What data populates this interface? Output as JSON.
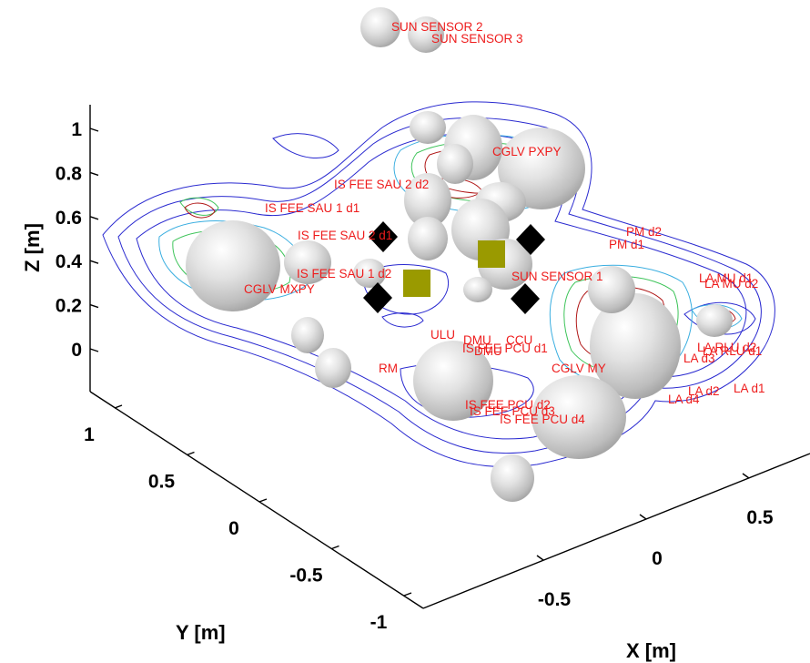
{
  "chart_data": {
    "type": "scatter",
    "title": "",
    "xlabel": "X [m]",
    "ylabel": "Y [m]",
    "zlabel": "Z [m]",
    "xlim": [
      -0.8,
      0.8
    ],
    "ylim": [
      -1,
      1
    ],
    "zlim": [
      -0.1,
      1.1
    ],
    "x_ticks": [
      "-0.5",
      "0",
      "0.5"
    ],
    "y_ticks": [
      "-1",
      "-0.5",
      "0",
      "0.5",
      "1"
    ],
    "z_ticks": [
      "0",
      "0.2",
      "0.4",
      "0.6",
      "0.8",
      "1"
    ],
    "grid": false,
    "colors": {
      "labels": "#ee1c1c",
      "contour_outer": "#2a2ad0",
      "contour_mid": "#3aaee0",
      "contour_green": "#3ec45a",
      "contour_inner": "#b01818",
      "diamond_markers": "#000000",
      "square_markers": "#9a9a00",
      "components": "#c8c8c8"
    },
    "components": [
      {
        "label": "SUN SENSOR 2"
      },
      {
        "label": "SUN SENSOR 3"
      },
      {
        "label": "CGLV PXPY"
      },
      {
        "label": "IS FEE SAU 2 d2"
      },
      {
        "label": "IS FEE SAU 1 d1"
      },
      {
        "label": "IS FEE SAU 2 d1"
      },
      {
        "label": "IS FEE SAU 1 d2"
      },
      {
        "label": "CGLV MXPY"
      },
      {
        "label": "PM d2"
      },
      {
        "label": "PM d1"
      },
      {
        "label": "SUN SENSOR 1"
      },
      {
        "label": "LA MU d1"
      },
      {
        "label": "LA MU d2"
      },
      {
        "label": "ULU"
      },
      {
        "label": "DMU"
      },
      {
        "label": "CCU"
      },
      {
        "label": "IS FEE PCU d1"
      },
      {
        "label": "DMU"
      },
      {
        "label": "RM"
      },
      {
        "label": "CGLV MY"
      },
      {
        "label": "LA d3"
      },
      {
        "label": "LA RLU d2"
      },
      {
        "label": "LA RLU d1"
      },
      {
        "label": "LA d2"
      },
      {
        "label": "LA d1"
      },
      {
        "label": "LA d4"
      },
      {
        "label": "IS FEE PCU d2"
      },
      {
        "label": "IS FEE PCU d3"
      },
      {
        "label": "IS FEE PCU d4"
      }
    ],
    "marker_sets": [
      {
        "shape": "diamond",
        "count": 4
      },
      {
        "shape": "square",
        "count": 2
      }
    ]
  }
}
